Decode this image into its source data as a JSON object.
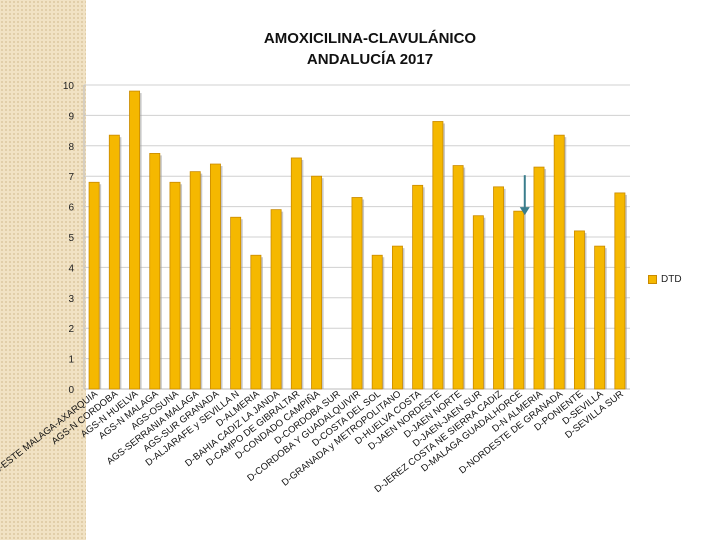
{
  "title_line1": "AMOXICILINA-CLAVULÁNICO",
  "title_line2": "ANDALUCÍA 2017",
  "colors": {
    "bar_fill": "#f5b800",
    "bar_edge": "#c98a00",
    "arrow": "#3a7d8c"
  },
  "chart_data": {
    "type": "bar",
    "title": "AMOXICILINA-CLAVULÁNICO ANDALUCÍA 2017",
    "xlabel": "",
    "ylabel": "",
    "ylim": [
      0,
      10
    ],
    "yticks": [
      0,
      1,
      2,
      3,
      4,
      5,
      6,
      7,
      8,
      9,
      10
    ],
    "grid": true,
    "legend_position": "right",
    "categories": [
      "AGS-ESTE MALAGA-AXARQUIA",
      "AGS-N CORDOBA",
      "AGS-N HUELVA",
      "AGS-N MALAGA",
      "AGS-OSUNA",
      "AGS-SERRANIA MALAGA",
      "AGS-SUR GRANADA",
      "D-ALJARAFE y SEVILLA N",
      "D-ALMERIA",
      "D-BAHIA CADIZ LA JANDA",
      "D-CAMPO DE GIBRALTAR",
      "D-CONDADO CAMPIÑA",
      "D-CORDOBA SUR",
      "D-CORDOBA Y GUADALQUIVIR",
      "D-COSTA DEL SOL",
      "D-GRANADA y METROPOLITANO",
      "D-HUELVA COSTA",
      "D-JAEN NORDESTE",
      "D-JAEN NORTE",
      "D-JAEN-JAEN SUR",
      "D-JEREZ COSTA NE SIERRA CADIZ",
      "D-MALAGA GUADALHORCE",
      "D-N ALMERIA",
      "D-NORDESTE DE GRANADA",
      "D-PONIENTE",
      "D-SEVILLA",
      "D-SEVILLA SUR"
    ],
    "series": [
      {
        "name": "DTD",
        "values": [
          6.8,
          8.35,
          9.8,
          7.75,
          6.8,
          7.15,
          7.4,
          5.65,
          4.4,
          5.9,
          7.6,
          7.0,
          null,
          6.3,
          4.4,
          4.7,
          6.7,
          8.8,
          7.35,
          5.7,
          6.65,
          5.85,
          7.3,
          8.35,
          5.2,
          4.7,
          6.45
        ]
      }
    ],
    "annotations": [
      {
        "type": "arrow",
        "category": "D-MALAGA GUADALHORCE"
      }
    ]
  }
}
